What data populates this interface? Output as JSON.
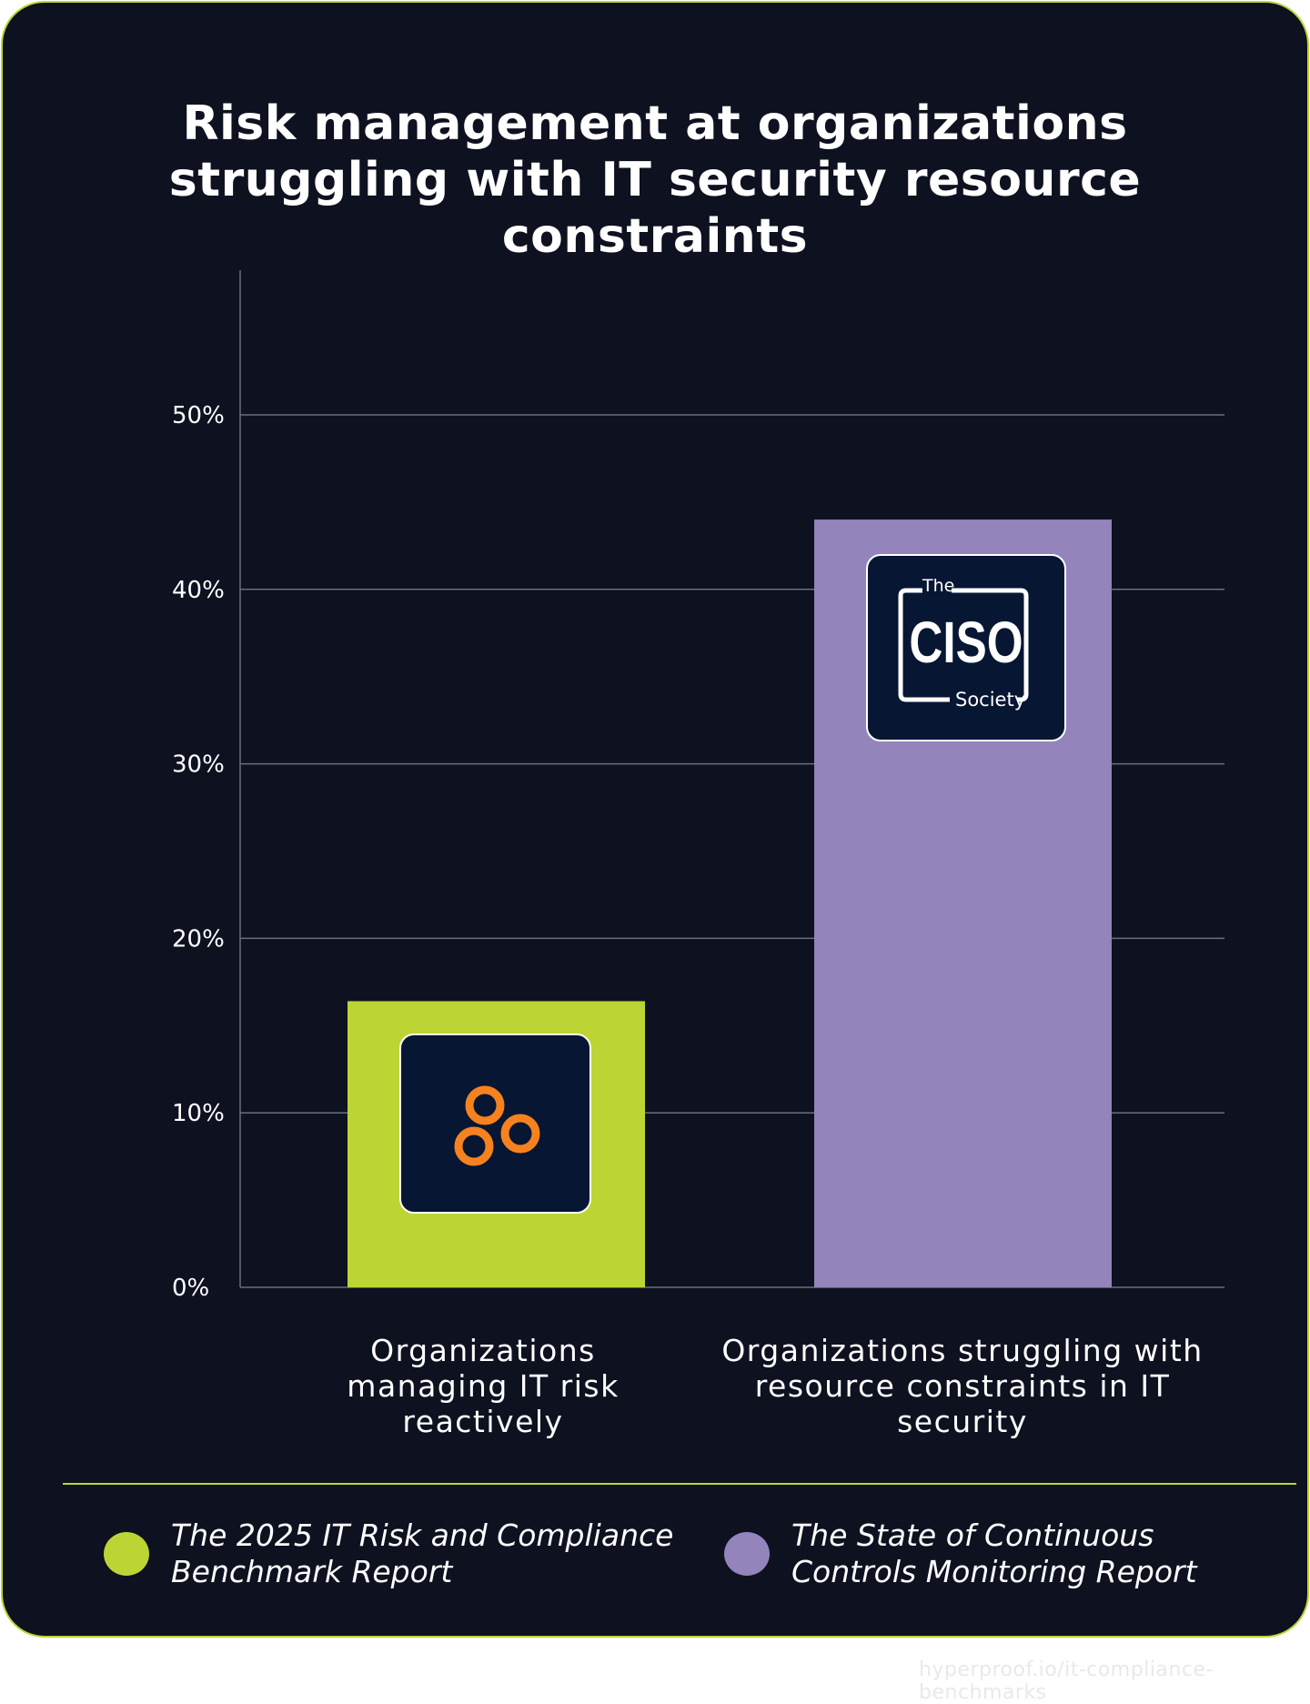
{
  "chart_data": {
    "type": "bar",
    "title": "Risk management at organizations struggling with IT security resource constraints",
    "title_lines": [
      "Risk management at organizations",
      "struggling with IT security resource",
      "constraints"
    ],
    "categories": [
      [
        "Organizations",
        "managing IT risk",
        "reactively"
      ],
      [
        "Organizations struggling with",
        "resource constraints in IT",
        "security"
      ]
    ],
    "values": [
      16.4,
      44
    ],
    "colors": [
      "#bcd534",
      "#9384bc"
    ],
    "yticks": [
      0,
      10,
      20,
      30,
      40,
      50
    ],
    "ytick_labels": [
      "0%",
      "10%",
      "20%",
      "30%",
      "40%",
      "50%"
    ],
    "ylim": [
      0,
      58
    ],
    "grid": true,
    "legend": [
      {
        "label_lines": [
          "The 2025 IT Risk and Compliance",
          "Benchmark Report"
        ],
        "color": "#bcd534"
      },
      {
        "label_lines": [
          "The State of Continuous",
          "Controls Monitoring Report"
        ],
        "color": "#9384bc"
      }
    ],
    "legend_placement": "bottom",
    "logos": [
      {
        "name": "hyperproof-logo",
        "color": "#f5821f"
      },
      {
        "name": "ciso-society-logo",
        "text": [
          "The",
          "CISO",
          "Society"
        ]
      }
    ]
  },
  "footer": "hyperproof.io/it-compliance-benchmarks"
}
